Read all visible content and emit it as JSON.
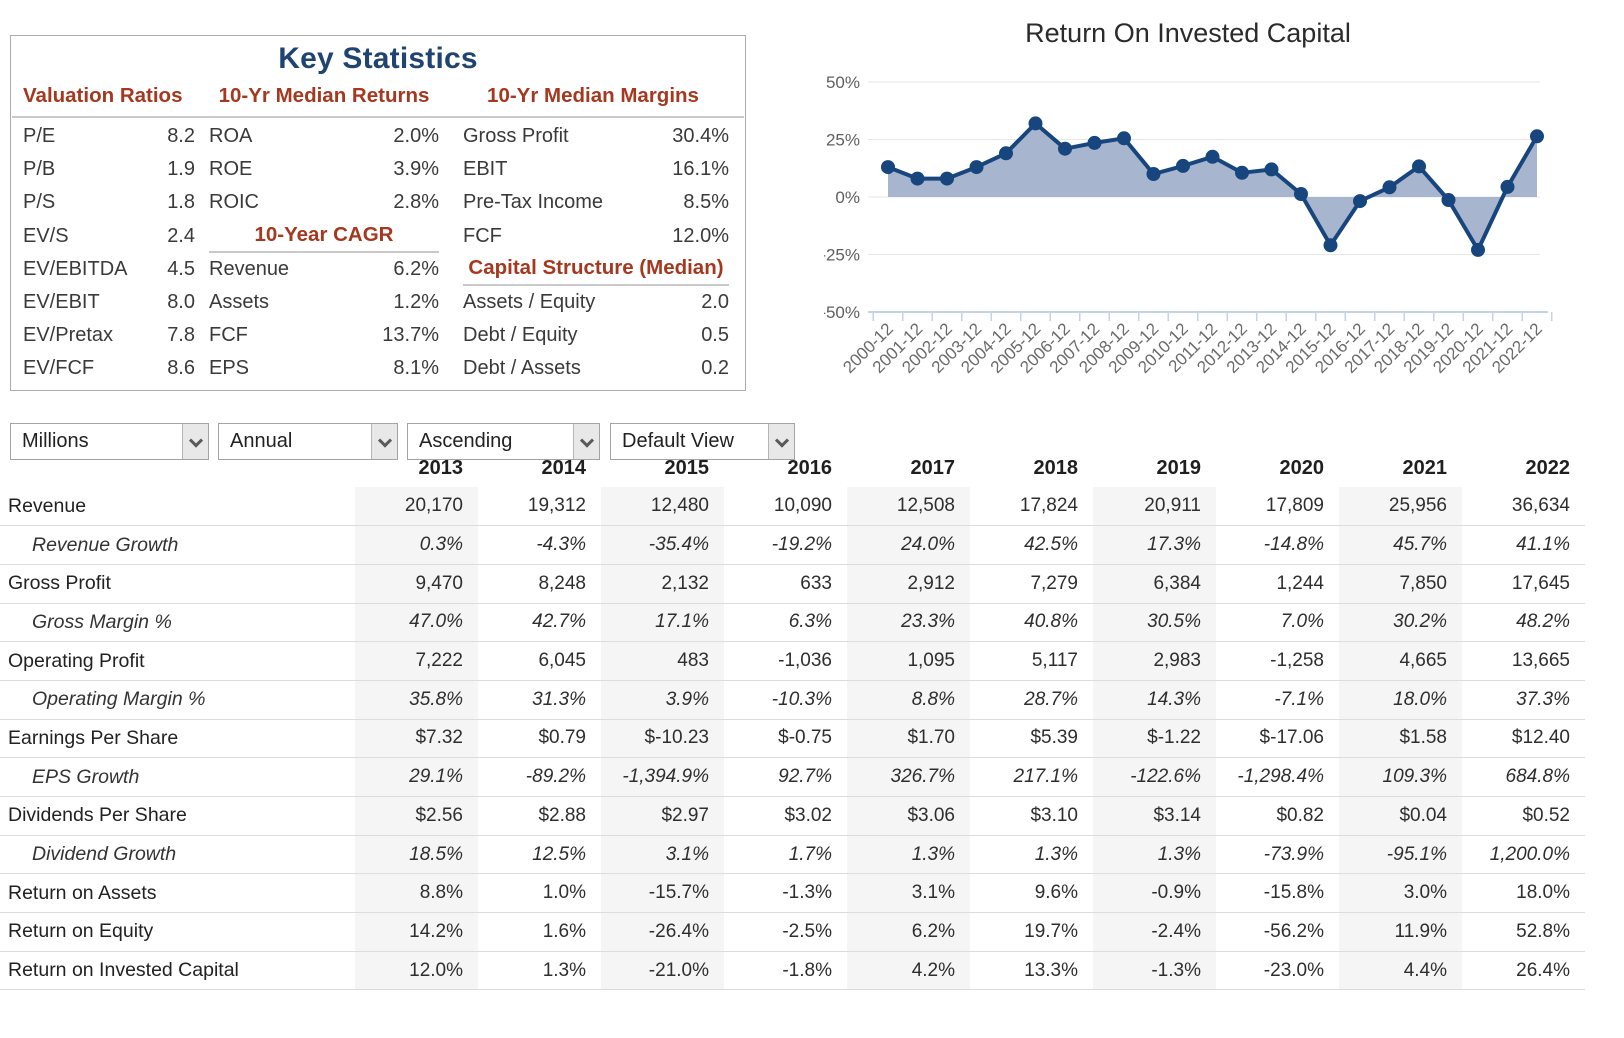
{
  "key_statistics": {
    "title": "Key Statistics",
    "columns": [
      {
        "sections": [
          {
            "header": "Valuation Ratios",
            "rows": [
              {
                "label": "P/E",
                "value": "8.2"
              },
              {
                "label": "P/B",
                "value": "1.9"
              },
              {
                "label": "P/S",
                "value": "1.8"
              },
              {
                "label": "EV/S",
                "value": "2.4"
              },
              {
                "label": "EV/EBITDA",
                "value": "4.5"
              },
              {
                "label": "EV/EBIT",
                "value": "8.0"
              },
              {
                "label": "EV/Pretax",
                "value": "7.8"
              },
              {
                "label": "EV/FCF",
                "value": "8.6"
              }
            ]
          }
        ]
      },
      {
        "sections": [
          {
            "header": "10-Yr Median Returns",
            "rows": [
              {
                "label": "ROA",
                "value": "2.0%"
              },
              {
                "label": "ROE",
                "value": "3.9%"
              },
              {
                "label": "ROIC",
                "value": "2.8%"
              }
            ]
          },
          {
            "header": "10-Year CAGR",
            "rows": [
              {
                "label": "Revenue",
                "value": "6.2%"
              },
              {
                "label": "Assets",
                "value": "1.2%"
              },
              {
                "label": "FCF",
                "value": "13.7%"
              },
              {
                "label": "EPS",
                "value": "8.1%"
              }
            ]
          }
        ]
      },
      {
        "sections": [
          {
            "header": "10-Yr Median Margins",
            "rows": [
              {
                "label": "Gross Profit",
                "value": "30.4%"
              },
              {
                "label": "EBIT",
                "value": "16.1%"
              },
              {
                "label": "Pre-Tax Income",
                "value": "8.5%"
              },
              {
                "label": "FCF",
                "value": "12.0%"
              }
            ]
          },
          {
            "header": "Capital Structure (Median)",
            "rows": [
              {
                "label": "Assets / Equity",
                "value": "2.0"
              },
              {
                "label": "Debt / Equity",
                "value": "0.5"
              },
              {
                "label": "Debt / Assets",
                "value": "0.2"
              }
            ]
          }
        ]
      }
    ]
  },
  "chart_data": {
    "type": "area",
    "title": "Return On Invested Capital",
    "x": [
      "2000-12",
      "2001-12",
      "2002-12",
      "2003-12",
      "2004-12",
      "2005-12",
      "2006-12",
      "2007-12",
      "2008-12",
      "2009-12",
      "2010-12",
      "2011-12",
      "2012-12",
      "2013-12",
      "2014-12",
      "2015-12",
      "2016-12",
      "2017-12",
      "2018-12",
      "2019-12",
      "2020-12",
      "2021-12",
      "2022-12"
    ],
    "values": [
      13,
      8,
      8,
      13,
      19,
      32,
      21,
      23.5,
      25.5,
      10,
      13.5,
      17.5,
      10.5,
      12.0,
      1.3,
      -21.0,
      -1.8,
      4.2,
      13.3,
      -1.3,
      -23.0,
      4.4,
      26.4
    ],
    "ylim": [
      -50,
      50
    ],
    "yticks": [
      {
        "label": "50%",
        "value": 50
      },
      {
        "label": "25%",
        "value": 25
      },
      {
        "label": "0%",
        "value": 0
      },
      {
        "label": "-25%",
        "value": -25
      },
      {
        "label": "-50%",
        "value": -50
      }
    ],
    "grid": true,
    "legend": "none",
    "line_color": "#17457e",
    "fill_color": "#a7b6ce",
    "ylabel": "",
    "xlabel": ""
  },
  "controls": {
    "units": "Millions",
    "period": "Annual",
    "sort": "Ascending",
    "view": "Default View"
  },
  "table": {
    "years": [
      "2013",
      "2014",
      "2015",
      "2016",
      "2017",
      "2018",
      "2019",
      "2020",
      "2021",
      "2022"
    ],
    "striped_years": [
      "2013",
      "2015",
      "2017",
      "2019",
      "2021"
    ],
    "rows": [
      {
        "label": "Revenue",
        "type": "main",
        "values": [
          "20,170",
          "19,312",
          "12,480",
          "10,090",
          "12,508",
          "17,824",
          "20,911",
          "17,809",
          "25,956",
          "36,634"
        ]
      },
      {
        "label": "Revenue Growth",
        "type": "sub",
        "values": [
          "0.3%",
          "-4.3%",
          "-35.4%",
          "-19.2%",
          "24.0%",
          "42.5%",
          "17.3%",
          "-14.8%",
          "45.7%",
          "41.1%"
        ]
      },
      {
        "label": "Gross Profit",
        "type": "main",
        "values": [
          "9,470",
          "8,248",
          "2,132",
          "633",
          "2,912",
          "7,279",
          "6,384",
          "1,244",
          "7,850",
          "17,645"
        ]
      },
      {
        "label": "Gross Margin %",
        "type": "sub",
        "values": [
          "47.0%",
          "42.7%",
          "17.1%",
          "6.3%",
          "23.3%",
          "40.8%",
          "30.5%",
          "7.0%",
          "30.2%",
          "48.2%"
        ]
      },
      {
        "label": "Operating Profit",
        "type": "main",
        "values": [
          "7,222",
          "6,045",
          "483",
          "-1,036",
          "1,095",
          "5,117",
          "2,983",
          "-1,258",
          "4,665",
          "13,665"
        ]
      },
      {
        "label": "Operating Margin %",
        "type": "sub",
        "values": [
          "35.8%",
          "31.3%",
          "3.9%",
          "-10.3%",
          "8.8%",
          "28.7%",
          "14.3%",
          "-7.1%",
          "18.0%",
          "37.3%"
        ]
      },
      {
        "label": "Earnings Per Share",
        "type": "main",
        "values": [
          "$7.32",
          "$0.79",
          "$-10.23",
          "$-0.75",
          "$1.70",
          "$5.39",
          "$-1.22",
          "$-17.06",
          "$1.58",
          "$12.40"
        ]
      },
      {
        "label": "EPS Growth",
        "type": "sub",
        "values": [
          "29.1%",
          "-89.2%",
          "-1,394.9%",
          "92.7%",
          "326.7%",
          "217.1%",
          "-122.6%",
          "-1,298.4%",
          "109.3%",
          "684.8%"
        ]
      },
      {
        "label": "Dividends Per Share",
        "type": "main",
        "values": [
          "$2.56",
          "$2.88",
          "$2.97",
          "$3.02",
          "$3.06",
          "$3.10",
          "$3.14",
          "$0.82",
          "$0.04",
          "$0.52"
        ]
      },
      {
        "label": "Dividend Growth",
        "type": "sub",
        "values": [
          "18.5%",
          "12.5%",
          "3.1%",
          "1.7%",
          "1.3%",
          "1.3%",
          "1.3%",
          "-73.9%",
          "-95.1%",
          "1,200.0%"
        ]
      },
      {
        "label": "Return on Assets",
        "type": "main",
        "values": [
          "8.8%",
          "1.0%",
          "-15.7%",
          "-1.3%",
          "3.1%",
          "9.6%",
          "-0.9%",
          "-15.8%",
          "3.0%",
          "18.0%"
        ]
      },
      {
        "label": "Return on Equity",
        "type": "main",
        "values": [
          "14.2%",
          "1.6%",
          "-26.4%",
          "-2.5%",
          "6.2%",
          "19.7%",
          "-2.4%",
          "-56.2%",
          "11.9%",
          "52.8%"
        ]
      },
      {
        "label": "Return on Invested Capital",
        "type": "main",
        "values": [
          "12.0%",
          "1.3%",
          "-21.0%",
          "-1.8%",
          "4.2%",
          "13.3%",
          "-1.3%",
          "-23.0%",
          "4.4%",
          "26.4%"
        ]
      }
    ]
  }
}
